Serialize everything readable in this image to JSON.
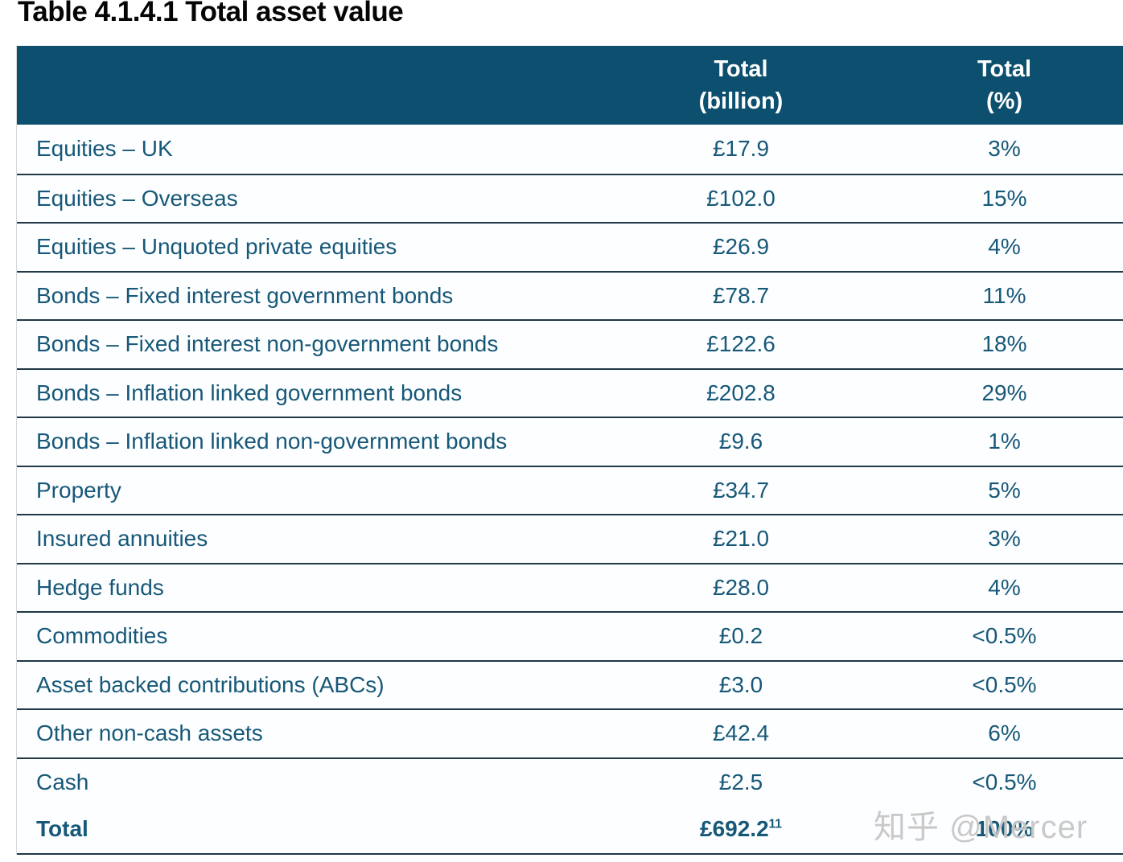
{
  "page_title": "Table 4.1.4.1 Total asset value",
  "watermark_text": "知乎 @Mercer",
  "colors": {
    "header_bg": "#0d4f6e",
    "body_text": "#175878",
    "divider": "#203847",
    "title_text": "#050505",
    "watermark": "#c7c7c7"
  },
  "table": {
    "column_headers": [
      {
        "line1": "",
        "line2": ""
      },
      {
        "line1": "Total",
        "line2": "(billion)"
      },
      {
        "line1": "Total",
        "line2": "(%)"
      }
    ],
    "rows": [
      {
        "label": "Equities – UK",
        "billion": "£17.9",
        "percent": "3%"
      },
      {
        "label": "Equities – Overseas",
        "billion": "£102.0",
        "percent": "15%"
      },
      {
        "label": "Equities – Unquoted private equities",
        "billion": "£26.9",
        "percent": "4%"
      },
      {
        "label": "Bonds – Fixed interest government bonds",
        "billion": "£78.7",
        "percent": "11%"
      },
      {
        "label": "Bonds – Fixed interest non-government bonds",
        "billion": "£122.6",
        "percent": "18%"
      },
      {
        "label": "Bonds – Inflation linked government bonds",
        "billion": "£202.8",
        "percent": "29%"
      },
      {
        "label": "Bonds – Inflation linked non-government bonds",
        "billion": "£9.6",
        "percent": "1%"
      },
      {
        "label": "Property",
        "billion": "£34.7",
        "percent": "5%"
      },
      {
        "label": "Insured annuities",
        "billion": "£21.0",
        "percent": "3%"
      },
      {
        "label": "Hedge funds",
        "billion": "£28.0",
        "percent": "4%"
      },
      {
        "label": "Commodities",
        "billion": "£0.2",
        "percent": "<0.5%"
      },
      {
        "label": "Asset backed contributions (ABCs)",
        "billion": "£3.0",
        "percent": "<0.5%"
      },
      {
        "label": "Other non-cash assets",
        "billion": "£42.4",
        "percent": "6%"
      },
      {
        "label": "Cash",
        "billion": "£2.5",
        "percent": "<0.5%"
      }
    ],
    "total_row": {
      "label": "Total",
      "billion": "£692.2",
      "billion_footnote": "11",
      "percent": "100%"
    }
  }
}
